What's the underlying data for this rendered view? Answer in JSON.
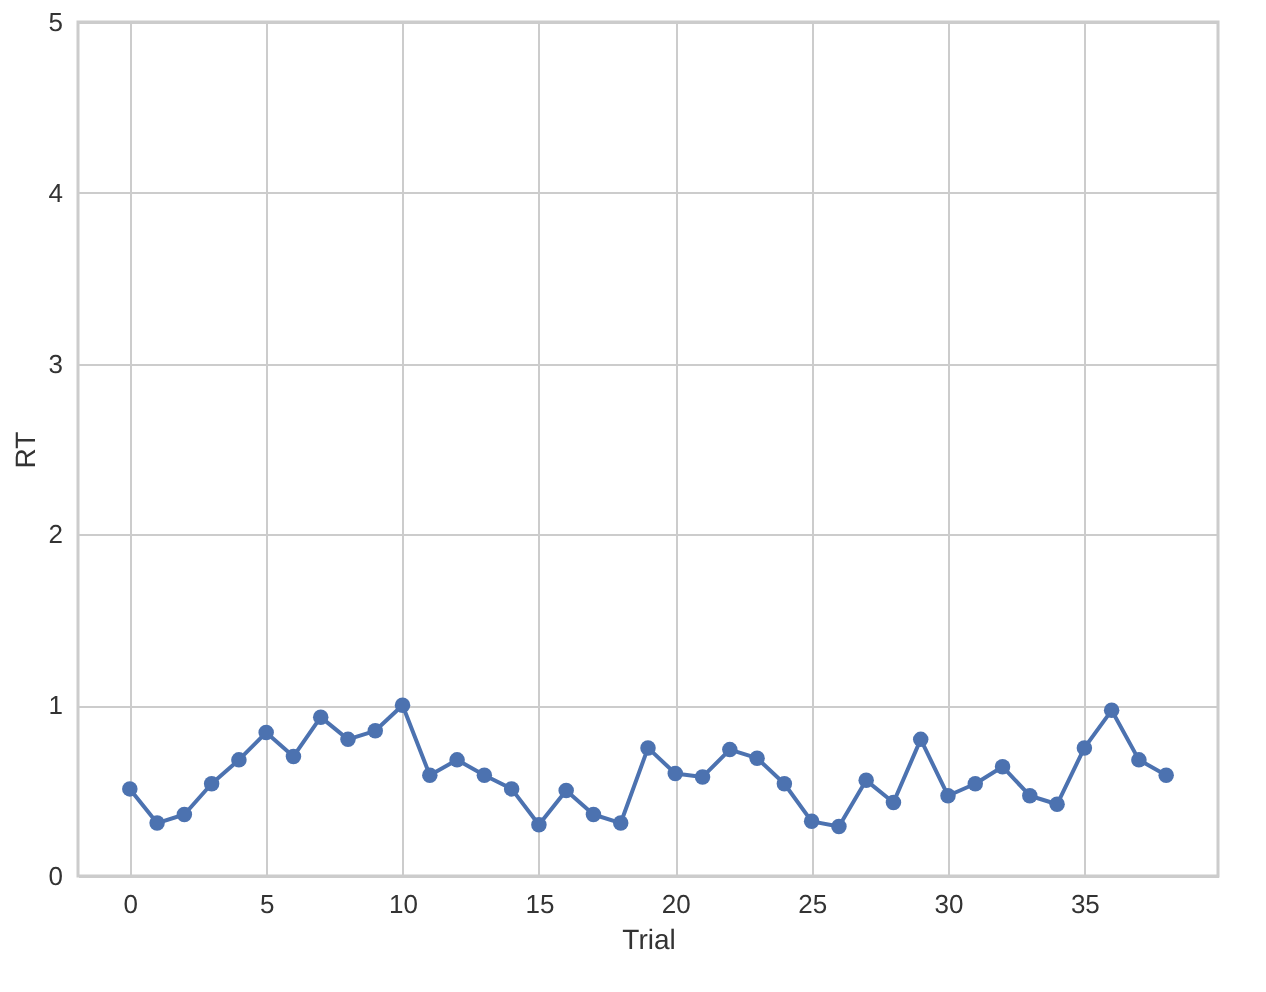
{
  "chart_data": {
    "type": "line",
    "xlabel": "Trial",
    "ylabel": "RT",
    "x": [
      0,
      1,
      2,
      3,
      4,
      5,
      6,
      7,
      8,
      9,
      10,
      11,
      12,
      13,
      14,
      15,
      16,
      17,
      18,
      19,
      20,
      21,
      22,
      23,
      24,
      25,
      26,
      27,
      28,
      29,
      30,
      31,
      32,
      33,
      34,
      35,
      36,
      37,
      38
    ],
    "series": [
      {
        "color": "#4c72b0",
        "values": [
          0.51,
          0.31,
          0.36,
          0.54,
          0.68,
          0.84,
          0.7,
          0.93,
          0.8,
          0.85,
          1.0,
          0.59,
          0.68,
          0.59,
          0.51,
          0.3,
          0.5,
          0.36,
          0.31,
          0.75,
          0.6,
          0.58,
          0.74,
          0.69,
          0.54,
          0.32,
          0.29,
          0.56,
          0.43,
          0.8,
          0.47,
          0.54,
          0.64,
          0.47,
          0.42,
          0.75,
          0.97,
          0.68,
          0.59
        ]
      }
    ],
    "xlim": [
      -1.9,
      39.9
    ],
    "xticks": [
      0,
      5,
      10,
      15,
      20,
      25,
      30,
      35
    ],
    "ylim": [
      0,
      5
    ],
    "yticks": [
      0,
      1,
      2,
      3,
      4,
      5
    ],
    "grid": true,
    "marker": "circle",
    "line_style": "solid"
  }
}
